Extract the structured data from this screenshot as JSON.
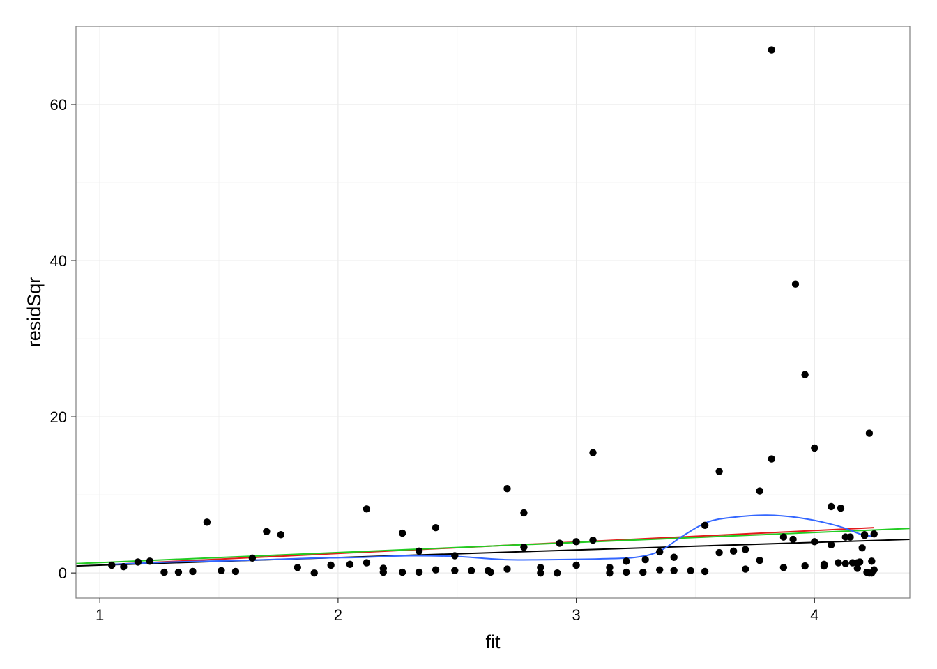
{
  "chart_data": {
    "type": "scatter",
    "title": "",
    "xlabel": "fit",
    "ylabel": "residSqr",
    "xlim": [
      0.9,
      4.4
    ],
    "ylim": [
      -3.2,
      70
    ],
    "x_ticks": [
      1,
      2,
      3,
      4
    ],
    "x_tick_labels": [
      "1",
      "2",
      "3",
      "4"
    ],
    "y_ticks": [
      0,
      20,
      40,
      60
    ],
    "y_tick_labels": [
      "0",
      "20",
      "40",
      "60"
    ],
    "grid": true,
    "legend": "none",
    "colors": {
      "points": "#000000",
      "black_line": "#000000",
      "red_line": "#e31a1c",
      "green_line": "#22cc22",
      "blue_smooth": "#3366ff",
      "grid": "#ebebeb",
      "border": "#7f7f7f"
    },
    "points": [
      [
        1.05,
        1.0
      ],
      [
        1.1,
        0.8
      ],
      [
        1.16,
        1.4
      ],
      [
        1.21,
        1.5
      ],
      [
        1.27,
        0.1
      ],
      [
        1.33,
        0.1
      ],
      [
        1.39,
        0.2
      ],
      [
        1.45,
        6.5
      ],
      [
        1.51,
        0.3
      ],
      [
        1.57,
        0.2
      ],
      [
        1.64,
        1.9
      ],
      [
        1.7,
        5.3
      ],
      [
        1.76,
        4.9
      ],
      [
        1.83,
        0.7
      ],
      [
        1.9,
        0.0
      ],
      [
        1.97,
        1.0
      ],
      [
        2.05,
        1.1
      ],
      [
        2.12,
        1.3
      ],
      [
        2.12,
        8.2
      ],
      [
        2.19,
        0.1
      ],
      [
        2.19,
        0.6
      ],
      [
        2.27,
        0.1
      ],
      [
        2.27,
        5.1
      ],
      [
        2.34,
        0.1
      ],
      [
        2.34,
        2.8
      ],
      [
        2.41,
        0.4
      ],
      [
        2.41,
        5.8
      ],
      [
        2.49,
        0.3
      ],
      [
        2.49,
        2.2
      ],
      [
        2.56,
        0.3
      ],
      [
        2.63,
        0.3
      ],
      [
        2.64,
        0.1
      ],
      [
        2.71,
        0.5
      ],
      [
        2.71,
        10.8
      ],
      [
        2.78,
        3.3
      ],
      [
        2.78,
        7.7
      ],
      [
        2.85,
        0.0
      ],
      [
        2.85,
        0.7
      ],
      [
        2.92,
        0.0
      ],
      [
        2.93,
        3.8
      ],
      [
        3.0,
        1.0
      ],
      [
        3.0,
        4.0
      ],
      [
        3.07,
        4.2
      ],
      [
        3.07,
        15.4
      ],
      [
        3.14,
        0.0
      ],
      [
        3.14,
        0.7
      ],
      [
        3.21,
        0.1
      ],
      [
        3.21,
        1.5
      ],
      [
        3.28,
        0.1
      ],
      [
        3.29,
        1.7
      ],
      [
        3.35,
        0.4
      ],
      [
        3.35,
        2.7
      ],
      [
        3.41,
        2.0
      ],
      [
        3.41,
        0.3
      ],
      [
        3.48,
        0.3
      ],
      [
        3.54,
        0.2
      ],
      [
        3.54,
        6.1
      ],
      [
        3.6,
        2.6
      ],
      [
        3.6,
        13.0
      ],
      [
        3.66,
        2.8
      ],
      [
        3.71,
        0.5
      ],
      [
        3.71,
        3.0
      ],
      [
        3.77,
        1.6
      ],
      [
        3.77,
        10.5
      ],
      [
        3.82,
        14.6
      ],
      [
        3.82,
        67.0
      ],
      [
        3.87,
        0.7
      ],
      [
        3.87,
        4.6
      ],
      [
        3.91,
        4.3
      ],
      [
        3.92,
        37.0
      ],
      [
        3.96,
        0.9
      ],
      [
        3.96,
        25.4
      ],
      [
        4.0,
        4.0
      ],
      [
        4.0,
        16.0
      ],
      [
        4.04,
        0.9
      ],
      [
        4.04,
        1.1
      ],
      [
        4.07,
        3.6
      ],
      [
        4.07,
        8.5
      ],
      [
        4.1,
        1.3
      ],
      [
        4.11,
        8.3
      ],
      [
        4.13,
        1.2
      ],
      [
        4.13,
        4.6
      ],
      [
        4.15,
        4.6
      ],
      [
        4.16,
        1.3
      ],
      [
        4.18,
        1.3
      ],
      [
        4.18,
        0.6
      ],
      [
        4.19,
        1.4
      ],
      [
        4.2,
        3.2
      ],
      [
        4.21,
        4.8
      ],
      [
        4.21,
        4.9
      ],
      [
        4.22,
        0.1
      ],
      [
        4.23,
        0.0
      ],
      [
        4.23,
        17.9
      ],
      [
        4.24,
        1.5
      ],
      [
        4.24,
        0.0
      ],
      [
        4.25,
        0.4
      ],
      [
        4.25,
        5.0
      ]
    ],
    "lines": [
      {
        "color": "black",
        "x": [
          0.9,
          4.4
        ],
        "y": [
          0.9,
          4.3
        ]
      },
      {
        "color": "red",
        "x": [
          1.05,
          4.25
        ],
        "y": [
          1.1,
          5.8
        ]
      },
      {
        "color": "green",
        "x": [
          0.9,
          4.4
        ],
        "y": [
          1.2,
          5.7
        ]
      }
    ],
    "smooth": {
      "color": "blue",
      "x": [
        1.05,
        1.3,
        1.6,
        1.9,
        2.1,
        2.3,
        2.5,
        2.7,
        2.9,
        3.1,
        3.25,
        3.35,
        3.45,
        3.55,
        3.65,
        3.8,
        3.95,
        4.1,
        4.2,
        4.25
      ],
      "y": [
        1.1,
        1.4,
        1.6,
        1.9,
        2.0,
        2.2,
        2.1,
        1.7,
        1.7,
        1.8,
        2.0,
        2.8,
        4.8,
        6.5,
        7.1,
        7.4,
        7.0,
        6.0,
        4.9,
        4.7
      ]
    }
  }
}
